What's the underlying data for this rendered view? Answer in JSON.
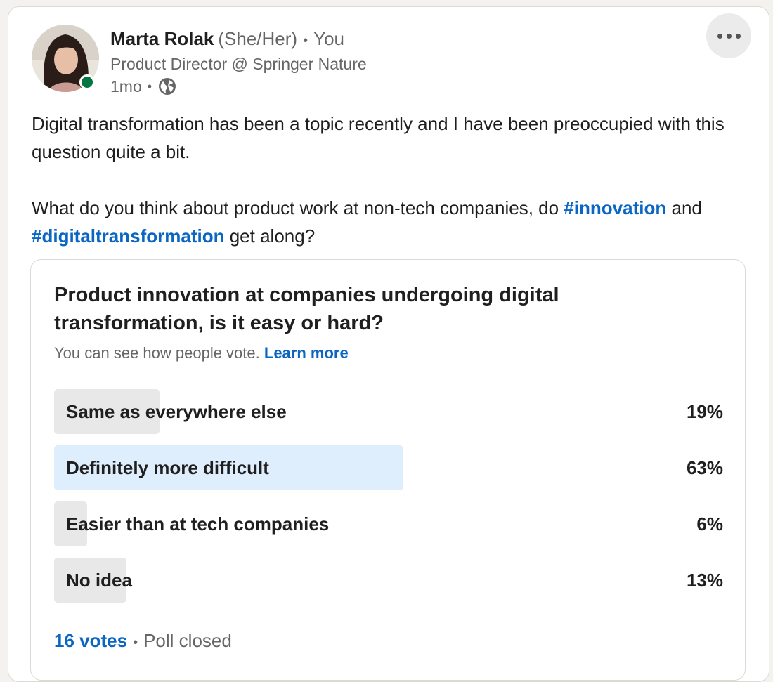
{
  "author": {
    "name": "Marta Rolak",
    "pronouns": "(She/Her)",
    "separator": "•",
    "relation": "You",
    "headline": "Product Director @ Springer Nature",
    "time_ago": "1mo",
    "visibility_icon": "globe-icon",
    "online": true
  },
  "post": {
    "paragraph1": "Digital transformation has been a topic recently and I have been preoccupied with this question quite a bit.",
    "paragraph2_lead": "What do you think about product work at non-tech companies, do",
    "hashtag1": "#innovation",
    "connector": "and",
    "hashtag2": "#digitaltransformation",
    "paragraph2_tail": "get along?"
  },
  "poll": {
    "question": "Product innovation at companies undergoing digital transformation, is it easy or hard?",
    "visibility_note": "You can see how people vote.",
    "learn_more": "Learn more",
    "options": [
      {
        "label": "Same as everywhere else",
        "percent_text": "19%",
        "percent": 19,
        "selected": false
      },
      {
        "label": "Definitely more difficult",
        "percent_text": "63%",
        "percent": 63,
        "selected": true
      },
      {
        "label": "Easier than at tech companies",
        "percent_text": "6%",
        "percent": 6,
        "selected": false
      },
      {
        "label": "No idea",
        "percent_text": "13%",
        "percent": 13,
        "selected": false
      }
    ],
    "votes": "16 votes",
    "status": "Poll closed"
  },
  "colors": {
    "link": "#0a66c2",
    "presence": "#057642",
    "selected_fill": "#dfeefc",
    "option_fill": "#e8e8e8"
  },
  "icons": {
    "more": "more-options-icon",
    "visibility": "globe-icon"
  }
}
